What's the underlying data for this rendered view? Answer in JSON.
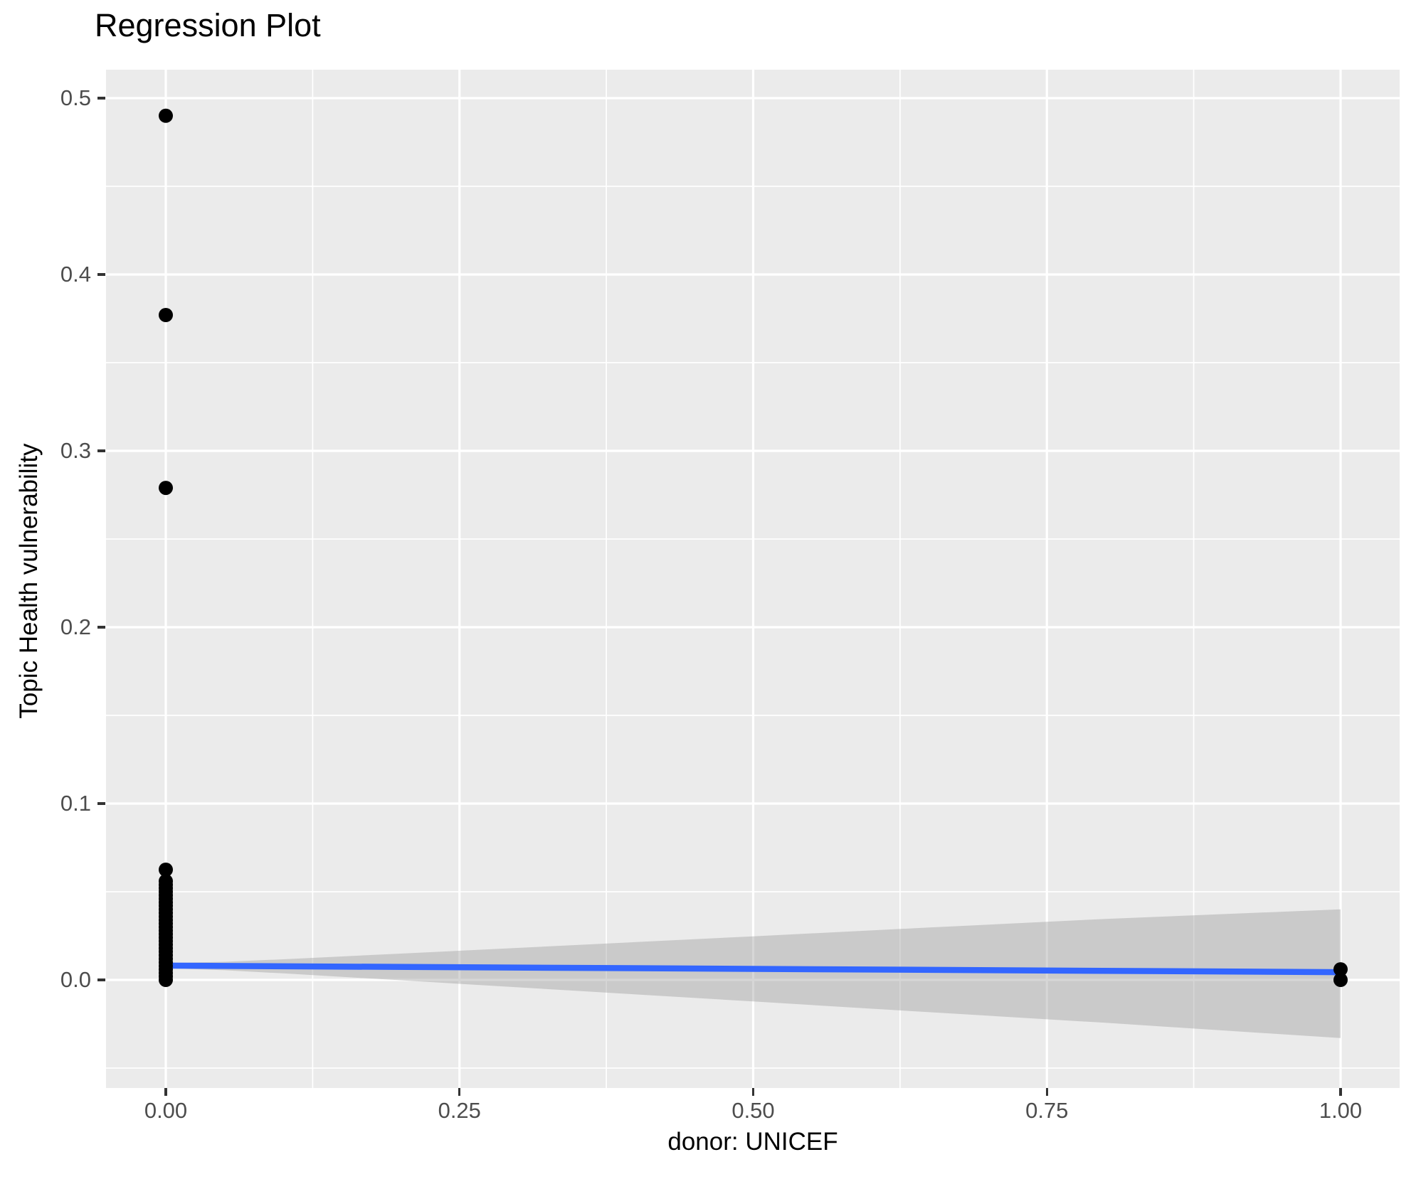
{
  "chart_data": {
    "type": "scatter",
    "title": "Regression Plot",
    "xlabel": "donor: UNICEF",
    "ylabel": "Topic Health vulnerability",
    "xlim": [
      -0.051,
      1.05
    ],
    "ylim": [
      -0.0613,
      0.5161
    ],
    "grid": true,
    "legend": "none",
    "x_ticks": [
      0.0,
      0.25,
      0.5,
      0.75,
      1.0
    ],
    "x_tick_labels": [
      "0.00",
      "0.25",
      "0.50",
      "0.75",
      "1.00"
    ],
    "x_minor_ticks": [
      0.125,
      0.375,
      0.625,
      0.875
    ],
    "y_ticks": [
      0.0,
      0.1,
      0.2,
      0.3,
      0.4,
      0.5
    ],
    "y_tick_labels": [
      "0.0",
      "0.1",
      "0.2",
      "0.3",
      "0.4",
      "0.5"
    ],
    "y_minor_ticks": [
      -0.05,
      0.05,
      0.15,
      0.25,
      0.35,
      0.45
    ],
    "points": {
      "x": [
        0,
        0,
        0,
        0,
        0,
        0,
        0,
        0,
        0,
        0,
        0,
        0,
        0,
        0,
        0,
        0,
        0,
        0,
        0,
        0,
        0,
        0,
        0,
        0,
        0,
        0,
        0,
        0,
        0,
        0,
        0,
        0,
        0,
        1,
        1
      ],
      "y": [
        0.49,
        0.377,
        0.279,
        0.0625,
        0.056,
        0.054,
        0.052,
        0.05,
        0.048,
        0.046,
        0.044,
        0.042,
        0.04,
        0.038,
        0.036,
        0.034,
        0.032,
        0.03,
        0.028,
        0.026,
        0.024,
        0.022,
        0.02,
        0.018,
        0.016,
        0.014,
        0.012,
        0.01,
        0.008,
        0.006,
        0.004,
        0.002,
        0.0,
        0.006,
        0.0
      ]
    },
    "regression_line": {
      "x": [
        0,
        1
      ],
      "y": [
        0.0081,
        0.0044
      ],
      "color": "#3366FF"
    },
    "ci_band": {
      "x": [
        0,
        0.05,
        0.1,
        0.2,
        0.35,
        0.5,
        0.65,
        0.8,
        1.0
      ],
      "upper": [
        0.0096,
        0.0103,
        0.0117,
        0.0149,
        0.0198,
        0.0247,
        0.0297,
        0.0346,
        0.04
      ],
      "lower": [
        0.0066,
        0.0055,
        0.0037,
        -0.0002,
        -0.0062,
        -0.0122,
        -0.0183,
        -0.0243,
        -0.033
      ],
      "color": "#999999",
      "alpha": 0.4
    },
    "point_color": "#000000",
    "panel_bg": "#EBEBEB",
    "grid_color": "#FFFFFF",
    "tick_label_color": "#4D4D4D",
    "tick_mark_color": "#333333"
  }
}
